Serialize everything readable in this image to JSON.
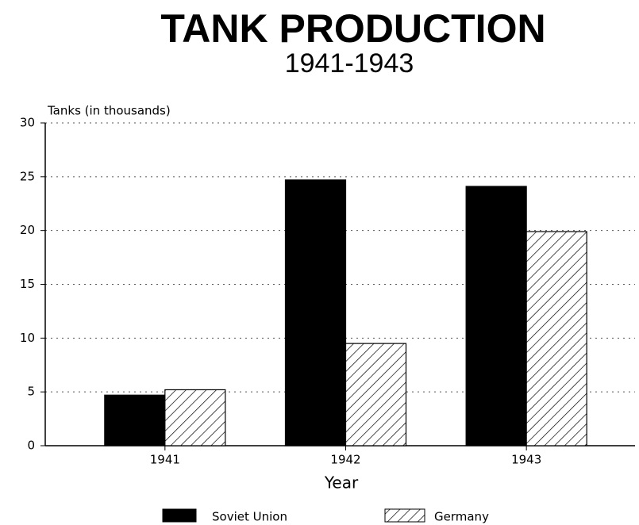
{
  "chart_data": {
    "type": "bar",
    "title": "TANK PRODUCTION",
    "subtitle": "1941-1943",
    "y_label": "Tanks (in thousands)",
    "x_label": "Year",
    "categories": [
      "1941",
      "1942",
      "1943"
    ],
    "series": [
      {
        "name": "Soviet Union",
        "color": "#000000",
        "pattern": "solid",
        "values": [
          4.7,
          24.7,
          24.1
        ]
      },
      {
        "name": "Germany",
        "color": "#000000",
        "pattern": "hatch",
        "values": [
          5.2,
          9.5,
          19.9
        ]
      }
    ],
    "ylim": [
      0,
      30
    ],
    "yticks": [
      0,
      5,
      10,
      15,
      20,
      25,
      30
    ],
    "grid": true,
    "legend": "bottom"
  }
}
